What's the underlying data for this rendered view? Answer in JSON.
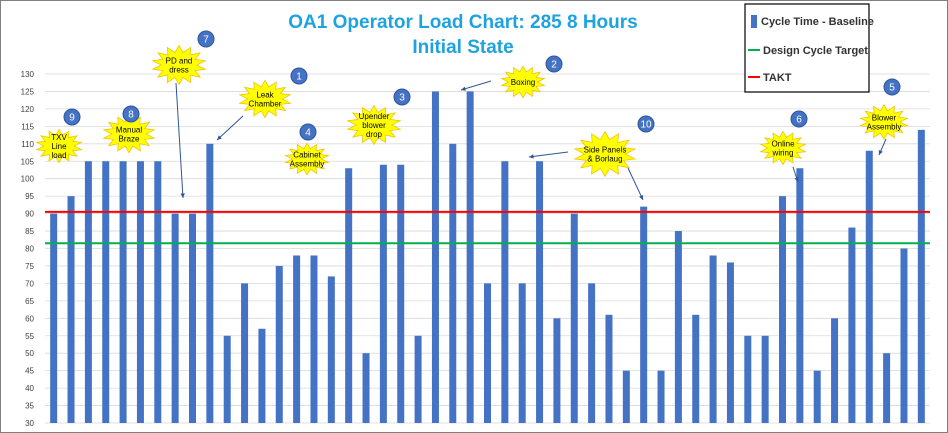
{
  "chart_data": {
    "type": "bar",
    "title": "OA1 Operator Load Chart: 285 8 Hours",
    "subtitle": "Initial State",
    "xlabel": "",
    "ylabel": "",
    "ylim": [
      30,
      130
    ],
    "yticks": [
      30,
      35,
      40,
      45,
      50,
      55,
      60,
      65,
      70,
      75,
      80,
      85,
      90,
      95,
      100,
      105,
      110,
      115,
      120,
      125,
      130
    ],
    "grid": true,
    "legend_position": "top-right",
    "series": [
      {
        "name": "Cycle Time - Baseline",
        "color": "#4472c4",
        "values": [
          90,
          95,
          105,
          105,
          105,
          105,
          105,
          90,
          90,
          110,
          55,
          70,
          57,
          75,
          78,
          78,
          72,
          103,
          50,
          104,
          104,
          55,
          125,
          110,
          125,
          70,
          105,
          70,
          105,
          60,
          90,
          70,
          61,
          45,
          92,
          45,
          85,
          61,
          78,
          76,
          55,
          55,
          95,
          103,
          45,
          60,
          86,
          108,
          50,
          80,
          114
        ]
      }
    ],
    "reference_lines": [
      {
        "name": "Design Cycle Target",
        "value": 81.5,
        "color": "#00b050"
      },
      {
        "name": "TAKT",
        "value": 90.5,
        "color": "#ff0000"
      }
    ],
    "annotations": [
      {
        "number": "1",
        "lines": [
          "Leak",
          "Chamber"
        ]
      },
      {
        "number": "2",
        "lines": [
          "Boxing"
        ]
      },
      {
        "number": "3",
        "lines": [
          "Upender",
          "blower",
          "drop"
        ]
      },
      {
        "number": "4",
        "lines": [
          "Cabinet",
          "Assembly"
        ]
      },
      {
        "number": "5",
        "lines": [
          "Blower",
          "Assembly"
        ]
      },
      {
        "number": "6",
        "lines": [
          "Online",
          "wiring"
        ]
      },
      {
        "number": "7",
        "lines": [
          "PD and",
          "dress"
        ]
      },
      {
        "number": "8",
        "lines": [
          "Manual",
          "Braze"
        ]
      },
      {
        "number": "9",
        "lines": [
          "TXV",
          "Line",
          "load"
        ]
      },
      {
        "number": "10",
        "lines": [
          "Side Panels",
          "& Borlaug"
        ]
      }
    ]
  }
}
